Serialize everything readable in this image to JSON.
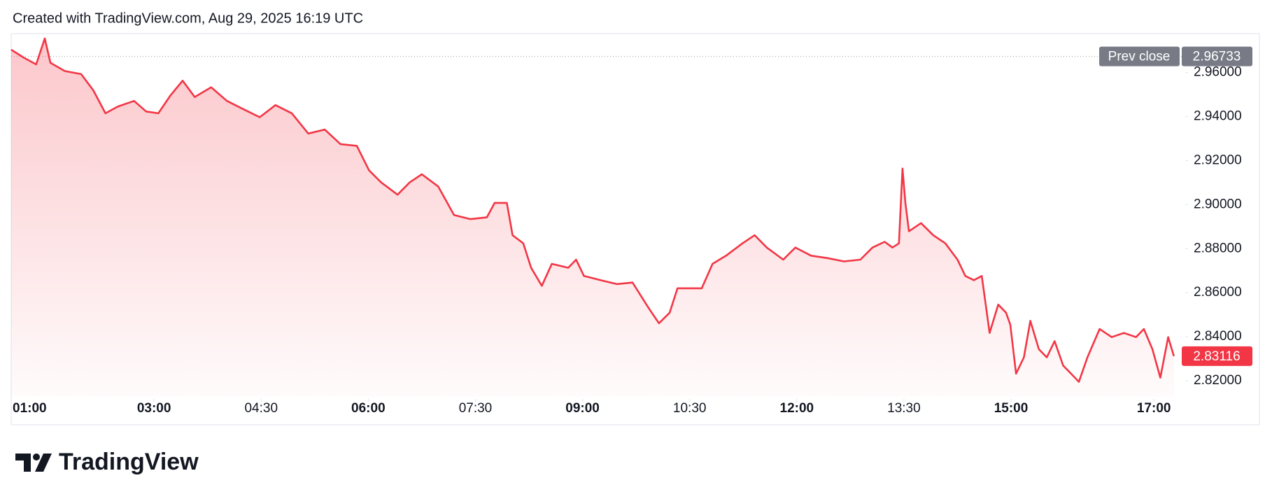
{
  "header": "Created with TradingView.com, Aug 29, 2025 16:19 UTC",
  "brand": "TradingView",
  "chart_data": {
    "type": "line",
    "x": [
      1.0,
      1.18,
      1.35,
      1.47,
      1.55,
      1.75,
      1.98,
      2.15,
      2.32,
      2.49,
      2.72,
      2.89,
      3.06,
      3.23,
      3.4,
      3.57,
      3.8,
      4.02,
      4.25,
      4.48,
      4.7,
      4.93,
      5.16,
      5.39,
      5.61,
      5.84,
      6.01,
      6.18,
      6.41,
      6.58,
      6.75,
      6.98,
      7.2,
      7.43,
      7.66,
      7.77,
      7.94,
      8.02,
      8.17,
      8.28,
      8.43,
      8.57,
      8.8,
      8.91,
      9.02,
      9.25,
      9.48,
      9.7,
      9.93,
      10.07,
      10.22,
      10.33,
      10.5,
      10.67,
      10.82,
      11.01,
      11.24,
      11.41,
      11.58,
      11.81,
      11.98,
      12.2,
      12.43,
      12.66,
      12.89,
      13.06,
      13.23,
      13.34,
      13.43,
      13.48,
      13.52,
      13.57,
      13.74,
      13.91,
      14.08,
      14.25,
      14.36,
      14.48,
      14.59,
      14.7,
      14.82,
      14.93,
      14.99,
      15.07,
      15.18,
      15.27,
      15.39,
      15.5,
      15.61,
      15.73,
      15.84,
      15.95,
      16.07,
      16.24,
      16.41,
      16.58,
      16.75,
      16.86,
      16.98,
      17.09,
      17.2,
      17.28
    ],
    "series": [
      {
        "color": "#f23645",
        "values": [
          2.9704,
          2.9667,
          2.9637,
          2.9755,
          2.9644,
          2.9607,
          2.9593,
          2.9519,
          2.9415,
          2.9445,
          2.9471,
          2.9423,
          2.9415,
          2.9496,
          2.9563,
          2.9489,
          2.9533,
          2.9471,
          2.9434,
          2.9397,
          2.9452,
          2.9415,
          2.9323,
          2.9341,
          2.9275,
          2.9267,
          2.9156,
          2.9101,
          2.9045,
          2.9101,
          2.9138,
          2.9082,
          2.8953,
          2.8934,
          2.8942,
          2.9008,
          2.9008,
          2.8861,
          2.8824,
          2.8713,
          2.8631,
          2.8731,
          2.8713,
          2.875,
          2.8676,
          2.8657,
          2.8639,
          2.8646,
          2.8528,
          2.8461,
          2.8509,
          2.862,
          2.862,
          2.862,
          2.8731,
          2.8768,
          2.8824,
          2.8861,
          2.8805,
          2.875,
          2.8805,
          2.8768,
          2.8757,
          2.8742,
          2.875,
          2.8805,
          2.8831,
          2.8805,
          2.8824,
          2.9164,
          2.9008,
          2.8879,
          2.8916,
          2.8861,
          2.8824,
          2.875,
          2.8676,
          2.8657,
          2.8676,
          2.8417,
          2.8546,
          2.8509,
          2.8454,
          2.8232,
          2.8306,
          2.8472,
          2.8343,
          2.8306,
          2.838,
          2.8269,
          2.8232,
          2.8195,
          2.8306,
          2.8435,
          2.8398,
          2.8417,
          2.8398,
          2.8435,
          2.8343,
          2.8214,
          2.8398,
          2.83116
        ]
      }
    ],
    "xlim": [
      1,
      17.4
    ],
    "xticks": [
      {
        "value": 1,
        "label": "01:00"
      },
      {
        "value": 3,
        "label": "03:00"
      },
      {
        "value": 4.5,
        "label": "04:30"
      },
      {
        "value": 6,
        "label": "06:00"
      },
      {
        "value": 7.5,
        "label": "07:30"
      },
      {
        "value": 9,
        "label": "09:00"
      },
      {
        "value": 10.5,
        "label": "10:30"
      },
      {
        "value": 12,
        "label": "12:00"
      },
      {
        "value": 13.5,
        "label": "13:30"
      },
      {
        "value": 15,
        "label": "15:00"
      },
      {
        "value": 17,
        "label": "17:00"
      }
    ],
    "ylim": [
      2.813,
      2.9777
    ],
    "yticks": [
      {
        "value": 2.82,
        "label": "2.82000"
      },
      {
        "value": 2.84,
        "label": "2.84000"
      },
      {
        "value": 2.86,
        "label": "2.86000"
      },
      {
        "value": 2.88,
        "label": "2.88000"
      },
      {
        "value": 2.9,
        "label": "2.90000"
      },
      {
        "value": 2.92,
        "label": "2.92000"
      },
      {
        "value": 2.94,
        "label": "2.94000"
      },
      {
        "value": 2.96,
        "label": "2.96000"
      }
    ],
    "prev_close_label": "Prev close",
    "prev_close": 2.96733,
    "last_value": 2.83116
  }
}
